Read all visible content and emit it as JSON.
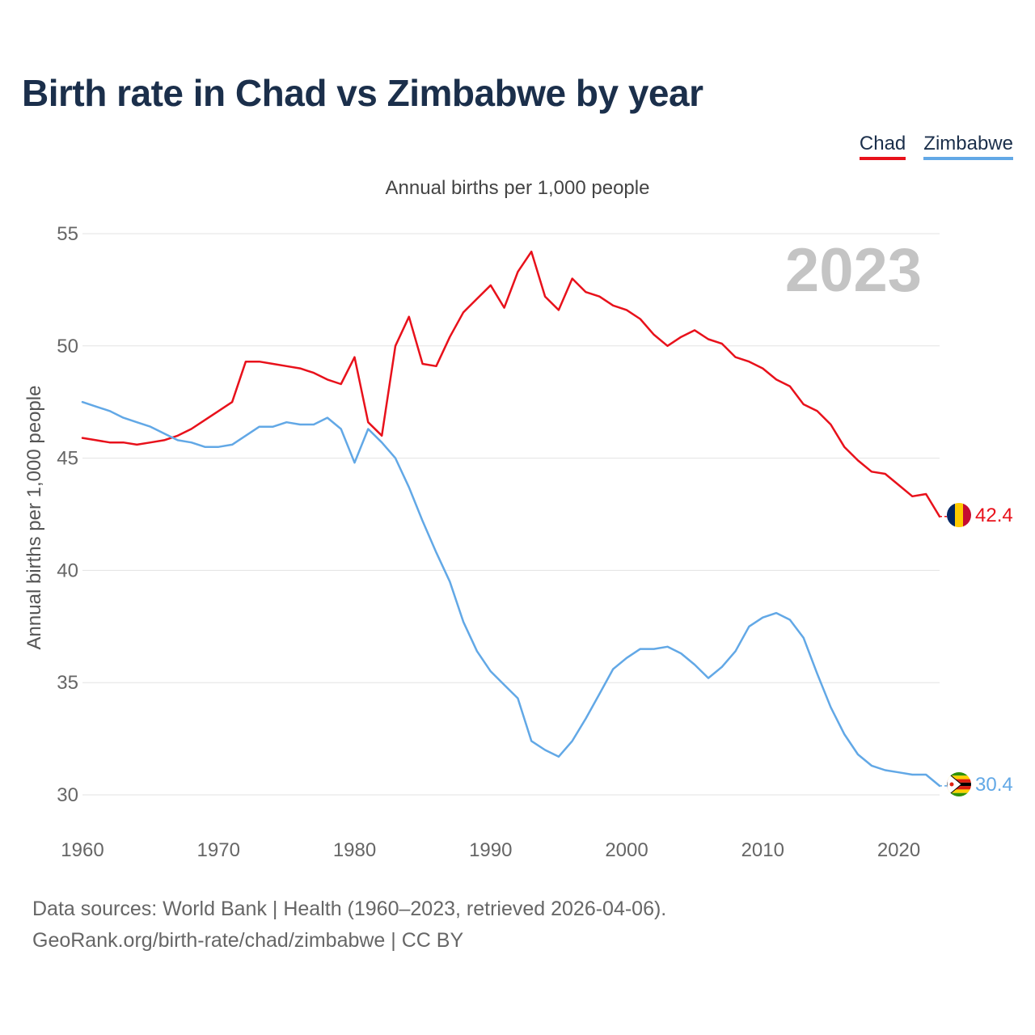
{
  "title": "Birth rate in Chad vs Zimbabwe by year",
  "legend": [
    {
      "label": "Chad",
      "color": "#e8111b"
    },
    {
      "label": "Zimbabwe",
      "color": "#62a8e6"
    }
  ],
  "footer": {
    "line1": "Data sources: World Bank | Health (1960–2023, retrieved 2026-04-06).",
    "line2": "GeoRank.org/birth-rate/chad/zimbabwe | CC BY"
  },
  "chart_data": {
    "type": "line",
    "title": "Annual births per 1,000 people",
    "ylabel": "Annual births per 1,000 people",
    "xlabel": "",
    "watermark": "2023",
    "xlim": [
      1960,
      2023
    ],
    "ylim": [
      30,
      55
    ],
    "xticks": [
      1960,
      1970,
      1980,
      1990,
      2000,
      2010,
      2020
    ],
    "yticks": [
      30,
      35,
      40,
      45,
      50,
      55
    ],
    "grid": true,
    "series": [
      {
        "name": "Chad",
        "color": "#e8111b",
        "end_label": "42.4",
        "flag": "chad-flag",
        "x": [
          1960,
          1961,
          1962,
          1963,
          1964,
          1965,
          1966,
          1967,
          1968,
          1969,
          1970,
          1971,
          1972,
          1973,
          1974,
          1975,
          1976,
          1977,
          1978,
          1979,
          1980,
          1981,
          1982,
          1983,
          1984,
          1985,
          1986,
          1987,
          1988,
          1989,
          1990,
          1991,
          1992,
          1993,
          1994,
          1995,
          1996,
          1997,
          1998,
          1999,
          2000,
          2001,
          2002,
          2003,
          2004,
          2005,
          2006,
          2007,
          2008,
          2009,
          2010,
          2011,
          2012,
          2013,
          2014,
          2015,
          2016,
          2017,
          2018,
          2019,
          2020,
          2021,
          2022,
          2023
        ],
        "values": [
          45.9,
          45.8,
          45.7,
          45.7,
          45.6,
          45.7,
          45.8,
          46.0,
          46.3,
          46.7,
          47.1,
          47.5,
          49.3,
          49.3,
          49.2,
          49.1,
          49.0,
          48.8,
          48.5,
          48.3,
          49.5,
          46.6,
          46.0,
          50.0,
          51.3,
          49.2,
          49.1,
          50.4,
          51.5,
          52.1,
          52.7,
          51.7,
          53.3,
          54.2,
          52.2,
          51.6,
          53.0,
          52.4,
          52.2,
          51.8,
          51.6,
          51.2,
          50.5,
          50.0,
          50.4,
          50.7,
          50.3,
          50.1,
          49.5,
          49.3,
          49.0,
          48.5,
          48.2,
          47.4,
          47.1,
          46.5,
          45.5,
          44.9,
          44.4,
          44.3,
          43.8,
          43.3,
          43.4,
          42.4
        ]
      },
      {
        "name": "Zimbabwe",
        "color": "#62a8e6",
        "end_label": "30.4",
        "flag": "zimbabwe-flag",
        "x": [
          1960,
          1961,
          1962,
          1963,
          1964,
          1965,
          1966,
          1967,
          1968,
          1969,
          1970,
          1971,
          1972,
          1973,
          1974,
          1975,
          1976,
          1977,
          1978,
          1979,
          1980,
          1981,
          1982,
          1983,
          1984,
          1985,
          1986,
          1987,
          1988,
          1989,
          1990,
          1991,
          1992,
          1993,
          1994,
          1995,
          1996,
          1997,
          1998,
          1999,
          2000,
          2001,
          2002,
          2003,
          2004,
          2005,
          2006,
          2007,
          2008,
          2009,
          2010,
          2011,
          2012,
          2013,
          2014,
          2015,
          2016,
          2017,
          2018,
          2019,
          2020,
          2021,
          2022,
          2023
        ],
        "values": [
          47.5,
          47.3,
          47.1,
          46.8,
          46.6,
          46.4,
          46.1,
          45.8,
          45.7,
          45.5,
          45.5,
          45.6,
          46.0,
          46.4,
          46.4,
          46.6,
          46.5,
          46.5,
          46.8,
          46.3,
          44.8,
          46.3,
          45.7,
          45.0,
          43.7,
          42.2,
          40.8,
          39.5,
          37.7,
          36.4,
          35.5,
          34.9,
          34.3,
          32.4,
          32.0,
          31.7,
          32.4,
          33.4,
          34.5,
          35.6,
          36.1,
          36.5,
          36.5,
          36.6,
          36.3,
          35.8,
          35.2,
          35.7,
          36.4,
          37.5,
          37.9,
          38.1,
          37.8,
          37.0,
          35.4,
          33.9,
          32.7,
          31.8,
          31.3,
          31.1,
          31.0,
          30.9,
          30.9,
          30.4
        ]
      }
    ]
  }
}
